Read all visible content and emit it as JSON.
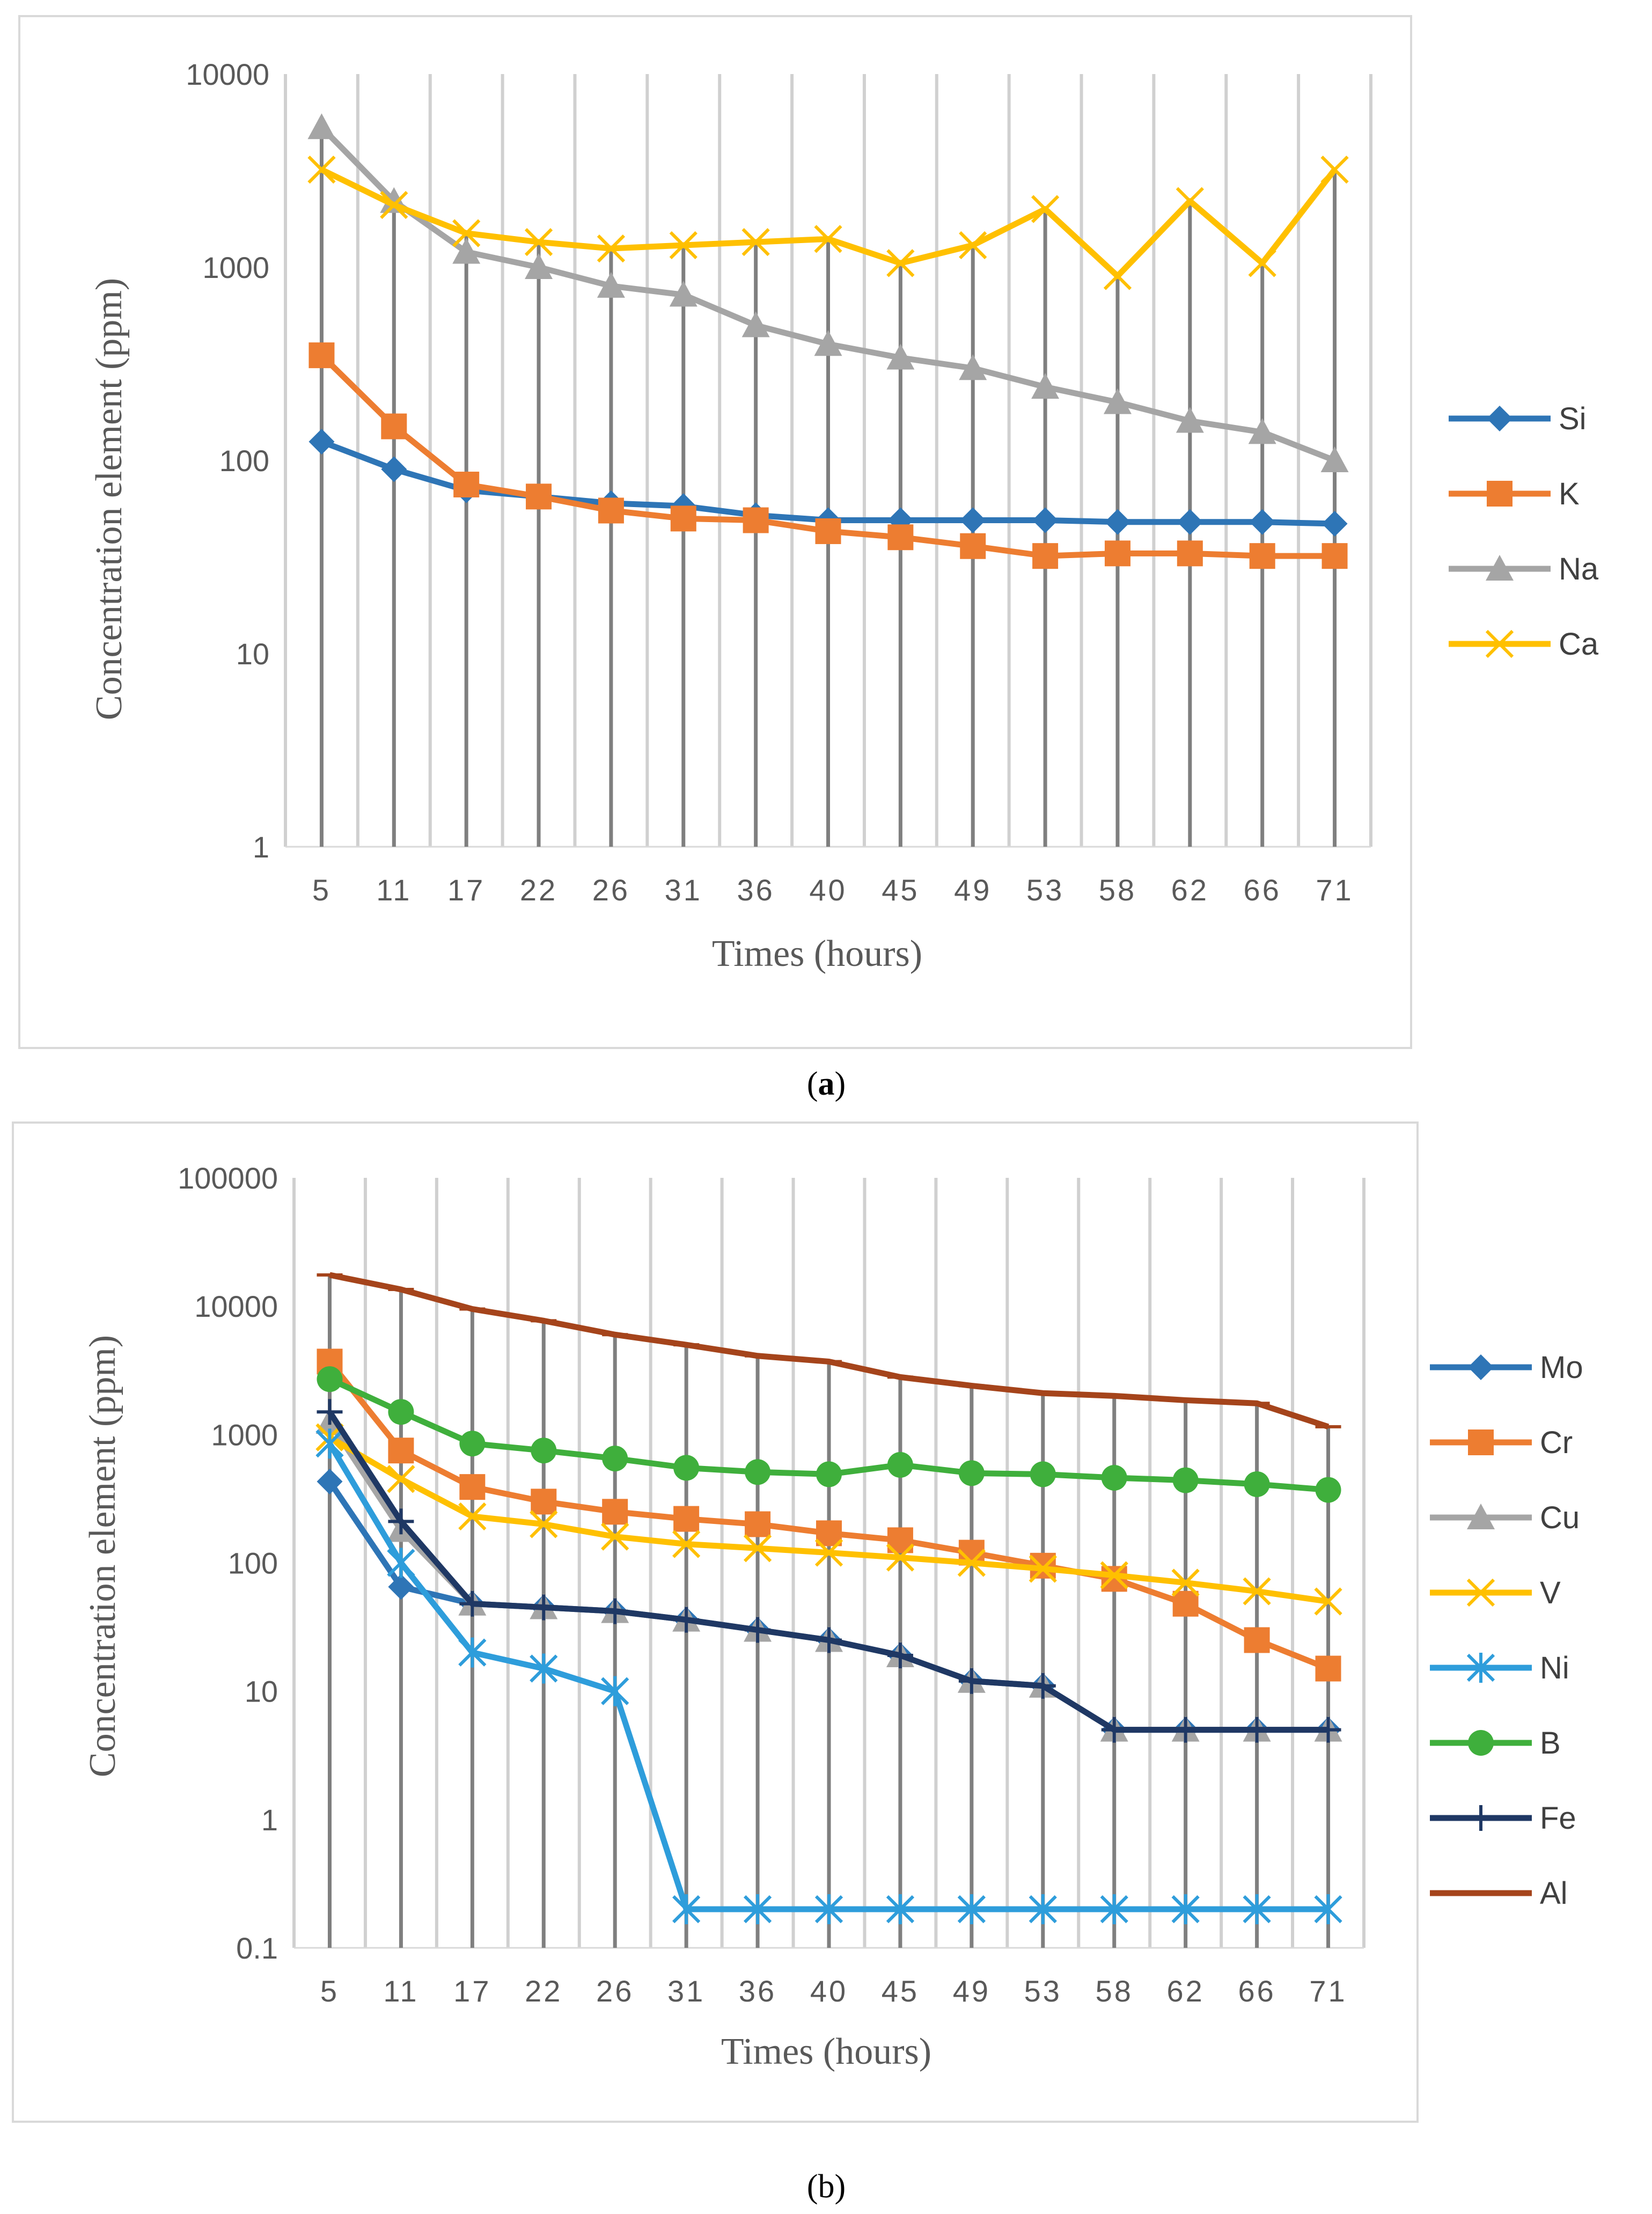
{
  "chart_data": [
    {
      "type": "line",
      "panel": "(a)",
      "caption_prefix": "(",
      "caption_letter": "a",
      "caption_suffix": ")",
      "xlabel": "Times (hours)",
      "ylabel": "Concentration element (ppm)",
      "yscale": "log",
      "ylim": [
        1,
        10000
      ],
      "yticks": [
        "10000",
        "1000",
        "100",
        "10",
        "1"
      ],
      "categories": [
        "5",
        "11",
        "17",
        "22",
        "26",
        "31",
        "36",
        "40",
        "45",
        "49",
        "53",
        "58",
        "62",
        "66",
        "71"
      ],
      "high_low_lines": true,
      "legend_position": "right",
      "series": [
        {
          "name": "Si",
          "marker": "diamond",
          "color": "#2e75b6",
          "values": [
            125,
            90,
            70,
            65,
            60,
            58,
            52,
            49,
            49,
            49,
            49,
            48,
            48,
            48,
            47
          ]
        },
        {
          "name": "K",
          "marker": "square",
          "color": "#ed7d31",
          "values": [
            350,
            150,
            75,
            65,
            55,
            50,
            49,
            43,
            40,
            36,
            32,
            33,
            33,
            32,
            32
          ]
        },
        {
          "name": "Na",
          "marker": "triangle",
          "color": "#a5a5a5",
          "values": [
            5300,
            2200,
            1200,
            1000,
            800,
            720,
            500,
            400,
            340,
            300,
            240,
            200,
            160,
            140,
            100
          ]
        },
        {
          "name": "Ca",
          "marker": "x",
          "color": "#ffc000",
          "values": [
            3200,
            2100,
            1500,
            1350,
            1250,
            1300,
            1350,
            1400,
            1050,
            1300,
            2000,
            900,
            2200,
            1050,
            3200
          ]
        }
      ]
    },
    {
      "type": "line",
      "panel": "(b)",
      "caption_text": "(b)",
      "xlabel": "Times (hours)",
      "ylabel": "Concentration element (ppm)",
      "yscale": "log",
      "ylim": [
        0.1,
        100000
      ],
      "yticks": [
        "100000",
        "10000",
        "1000",
        "100",
        "10",
        "1",
        "0.1"
      ],
      "categories": [
        "5",
        "11",
        "17",
        "22",
        "26",
        "31",
        "36",
        "40",
        "45",
        "49",
        "53",
        "58",
        "62",
        "66",
        "71"
      ],
      "high_low_lines": true,
      "legend_position": "right",
      "series": [
        {
          "name": "Mo",
          "marker": "diamond",
          "color": "#2e75b6",
          "values": [
            430,
            65,
            48,
            45,
            42,
            36,
            30,
            25,
            19,
            12,
            11,
            5,
            5,
            5,
            5
          ]
        },
        {
          "name": "Cr",
          "marker": "square",
          "color": "#ed7d31",
          "values": [
            3700,
            750,
            390,
            300,
            250,
            220,
            200,
            170,
            150,
            120,
            95,
            75,
            48,
            25,
            15
          ]
        },
        {
          "name": "Cu",
          "marker": "triangle",
          "color": "#a5a5a5",
          "values": [
            1250,
            180,
            48,
            45,
            42,
            36,
            30,
            25,
            19,
            12,
            11,
            5,
            5,
            5,
            5
          ]
        },
        {
          "name": "V",
          "marker": "x",
          "color": "#ffc000",
          "values": [
            950,
            450,
            230,
            200,
            160,
            140,
            130,
            120,
            110,
            100,
            90,
            80,
            70,
            60,
            50
          ]
        },
        {
          "name": "Ni",
          "marker": "star",
          "color": "#2e9ddb",
          "values": [
            850,
            100,
            20,
            15,
            10,
            0.2,
            0.2,
            0.2,
            0.2,
            0.2,
            0.2,
            0.2,
            0.2,
            0.2,
            0.2
          ]
        },
        {
          "name": "B",
          "marker": "circle",
          "color": "#3faf3c",
          "values": [
            2700,
            1500,
            850,
            750,
            650,
            550,
            510,
            490,
            580,
            500,
            490,
            460,
            440,
            410,
            370
          ]
        },
        {
          "name": "Fe",
          "marker": "plus",
          "color": "#1f3864",
          "values": [
            1500,
            210,
            48,
            45,
            42,
            36,
            30,
            25,
            19,
            12,
            11,
            5,
            5,
            5,
            5
          ]
        },
        {
          "name": "Al",
          "marker": "dash",
          "color": "#a5441b",
          "values": [
            17500,
            13500,
            9500,
            7700,
            6000,
            5000,
            4100,
            3700,
            2800,
            2400,
            2100,
            2000,
            1850,
            1750,
            1150
          ]
        }
      ]
    }
  ]
}
